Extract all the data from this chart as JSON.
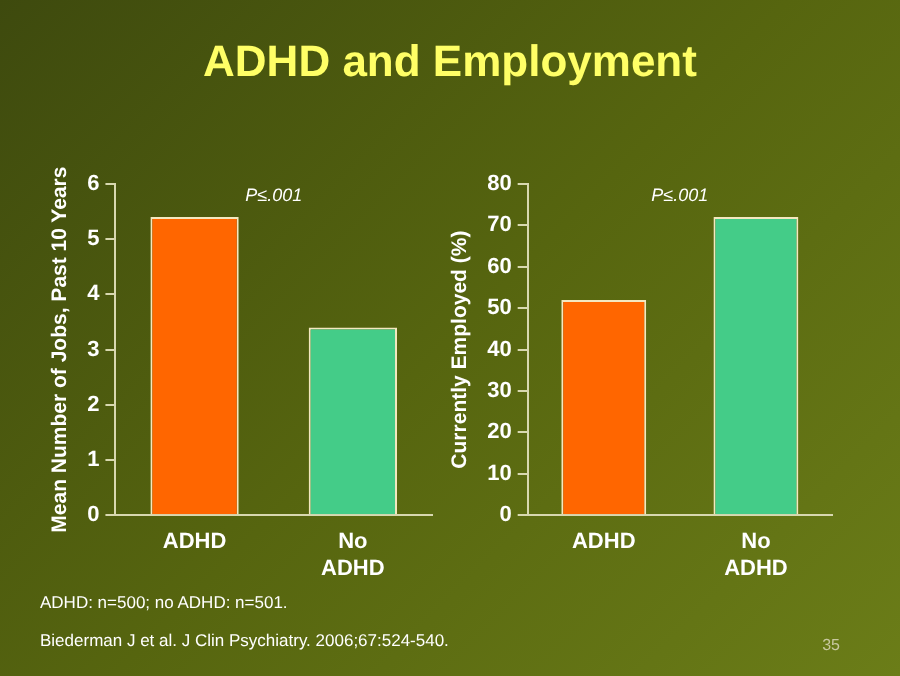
{
  "chart_data": [
    {
      "type": "bar",
      "title": "ADHD and Employment",
      "ylabel": "Mean Number of Jobs, Past 10 Years",
      "categories": [
        "ADHD",
        "No ADHD"
      ],
      "values": [
        5.4,
        3.4
      ],
      "colors": [
        "#ff6600",
        "#44cc88"
      ],
      "ylim": [
        0,
        6
      ],
      "yticks": [
        0,
        1,
        2,
        3,
        4,
        5,
        6
      ],
      "grid": false,
      "legend": false,
      "annotations": [
        "P≤.001"
      ]
    },
    {
      "type": "bar",
      "ylabel": "Currently Employed (%)",
      "categories": [
        "ADHD",
        "No ADHD"
      ],
      "values": [
        52,
        72
      ],
      "colors": [
        "#ff6600",
        "#44cc88"
      ],
      "ylim": [
        0,
        80
      ],
      "yticks": [
        0,
        10,
        20,
        30,
        40,
        50,
        60,
        70,
        80
      ],
      "grid": false,
      "legend": false,
      "annotations": [
        "P≤.001",
        "ADHD: n=500; no ADHD: n=501.",
        "Biederman J et al. J Clin Psychiatry. 2006;67:524-540.",
        "35"
      ]
    }
  ]
}
